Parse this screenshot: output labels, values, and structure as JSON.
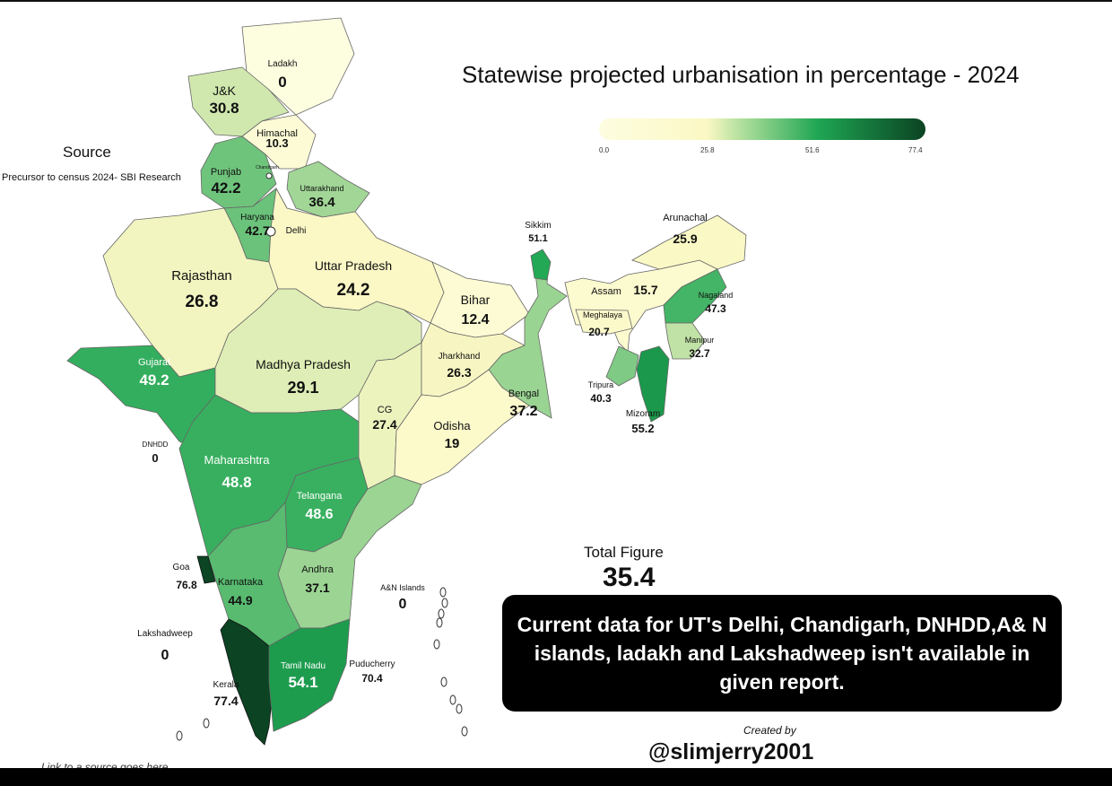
{
  "title": "Statewise projected urbanisation in percentage - 2024",
  "legend": {
    "ticks": [
      "0.0",
      "25.8",
      "51.6",
      "77.4"
    ],
    "min": 0,
    "max": 77.4,
    "colors": [
      "#fdfde0",
      "#fbf8c4",
      "#1fa653",
      "#0b4323"
    ]
  },
  "source": {
    "title": "Source",
    "text": "Precursor to census 2024- SBI Research"
  },
  "total": {
    "label": "Total Figure",
    "value": "35.4"
  },
  "note": "Current data for UT's Delhi, Chandigarh, DNHDD,A& N islands, ladakh and  Lakshadweep isn't available in given report.",
  "credit": {
    "label": "Created by",
    "handle": "@slimjerry2001"
  },
  "link_text": "Link to a source goes here",
  "states": {
    "ladakh": {
      "name": "Ladakh",
      "value": "0"
    },
    "jk": {
      "name": "J&K",
      "value": "30.8"
    },
    "himachal": {
      "name": "Himachal",
      "value": "10.3"
    },
    "chandigarh": {
      "name": "Chandigarh"
    },
    "punjab": {
      "name": "Punjab",
      "value": "42.2"
    },
    "uttarakhand": {
      "name": "Uttarakhand",
      "value": "36.4"
    },
    "haryana": {
      "name": "Haryana",
      "value": "42.7"
    },
    "delhi": {
      "name": "Delhi"
    },
    "rajasthan": {
      "name": "Rajasthan",
      "value": "26.8"
    },
    "up": {
      "name": "Uttar Pradesh",
      "value": "24.2"
    },
    "bihar": {
      "name": "Bihar",
      "value": "12.4"
    },
    "sikkim": {
      "name": "Sikkim",
      "value": "51.1"
    },
    "arunachal": {
      "name": "Arunachal",
      "value": "25.9"
    },
    "assam": {
      "name": "Assam",
      "value": "15.7"
    },
    "nagaland": {
      "name": "Nagaland",
      "value": "47.3"
    },
    "meghalaya": {
      "name": "Meghalaya",
      "value": "20.7"
    },
    "manipur": {
      "name": "Manipur",
      "value": "32.7"
    },
    "tripura": {
      "name": "Tripura",
      "value": "40.3"
    },
    "mizoram": {
      "name": "Mizoram",
      "value": "55.2"
    },
    "gujarat": {
      "name": "Gujarat",
      "value": "49.2"
    },
    "mp": {
      "name": "Madhya Pradesh",
      "value": "29.1"
    },
    "jharkhand": {
      "name": "Jharkhand",
      "value": "26.3"
    },
    "bengal": {
      "name": "Bengal",
      "value": "37.2"
    },
    "cg": {
      "name": "CG",
      "value": "27.4"
    },
    "odisha": {
      "name": "Odisha",
      "value": "19"
    },
    "dnhdd": {
      "name": "DNHDD",
      "value": "0"
    },
    "maharashtra": {
      "name": "Maharashtra",
      "value": "48.8"
    },
    "telangana": {
      "name": "Telangana",
      "value": "48.6"
    },
    "goa": {
      "name": "Goa",
      "value": "76.8"
    },
    "karnataka": {
      "name": "Karnataka",
      "value": "44.9"
    },
    "andhra": {
      "name": "Andhra",
      "value": "37.1"
    },
    "an": {
      "name": "A&N Islands",
      "value": "0"
    },
    "lakshadweep": {
      "name": "Lakshadweep",
      "value": "0"
    },
    "kerala": {
      "name": "Kerala",
      "value": "77.4"
    },
    "tn": {
      "name": "Tamil Nadu",
      "value": "54.1"
    },
    "puducherry": {
      "name": "Puducherry",
      "value": "70.4"
    }
  }
}
